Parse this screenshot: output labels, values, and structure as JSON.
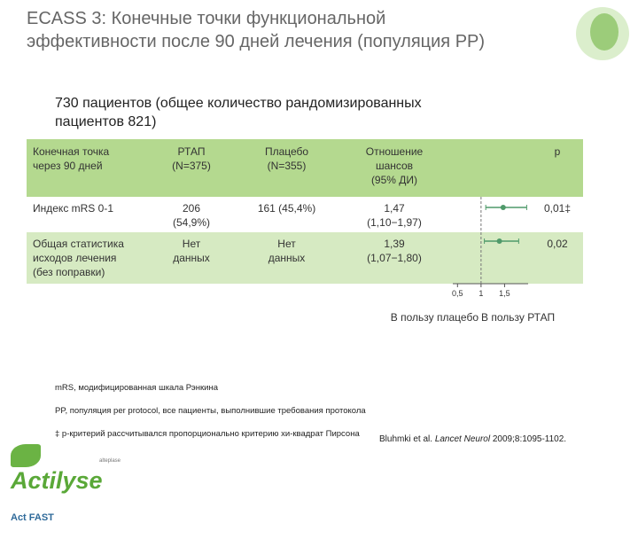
{
  "header": {
    "title": "ECASS 3: Конечные точки функциональной\nэффективности после 90 дней лечения (популяция PP)",
    "subtitle": "730 пациентов (общее количество рандомизированных\nпациентов 821)"
  },
  "table": {
    "columns": [
      "Конечная точка\nчерез 90 дней",
      "РТАП\n(N=375)",
      "Плацебо\n(N=355)",
      "Отношение\nшансов\n(95% ДИ)",
      "p"
    ],
    "rows": [
      [
        "Индекс mRS 0-1",
        "206\n(54,9%)",
        "161 (45,4%)",
        "1,47\n(1,10−1,97)",
        "0,01‡"
      ],
      [
        "Общая статистика\nисходов лечения\n(без поправки)",
        "Нет\nданных",
        "Нет\nданных",
        "1,39\n(1,07−1,80)",
        "0,02"
      ]
    ]
  },
  "forest": {
    "xlim": [
      0.4,
      2.0
    ],
    "reference": 1,
    "xticks": [
      {
        "value": 0.5,
        "label": "0,5"
      },
      1,
      {
        "value": 1.5,
        "label": "1,5"
      }
    ],
    "color": "#4f9a6a",
    "points": [
      {
        "value": 1.47,
        "ci": [
          1.1,
          1.97
        ]
      },
      {
        "value": 1.39,
        "ci": [
          1.07,
          1.8
        ]
      }
    ],
    "left_label": "В пользу плацебо",
    "right_label": "В пользу РТАП"
  },
  "footnotes": [
    "mRS, модифицированная шкала Рэнкина",
    "PP, популяция per protocol, все пациенты, выполнившие требования протокола",
    "‡ p-критерий рассчитывался пропорционально критерию хи-квадрат Пирсона"
  ],
  "citation": {
    "authors": "Bluhmki et al. ",
    "journal": "Lancet Neurol",
    "rest": " 2009;8:1095-1102."
  },
  "logo": {
    "name": "Actilyse",
    "tagline": "Act FAST",
    "generic": "alteplase"
  }
}
